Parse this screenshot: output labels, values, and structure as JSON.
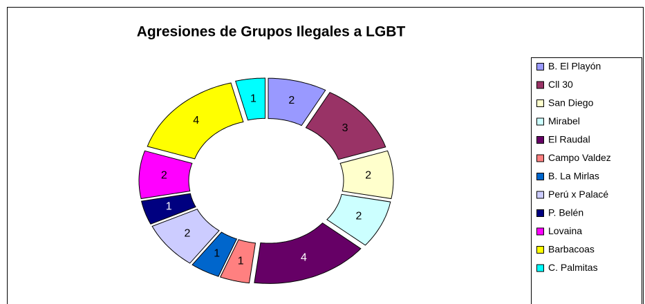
{
  "chart_data": {
    "type": "doughnut",
    "title": "Agresiones de Grupos Ilegales a LGBT",
    "categories": [
      "B. El Playón",
      "Cll 30",
      "San Diego",
      "Mirabel",
      "El Raudal",
      "Campo Valdez",
      "B. La Mirlas",
      "Perú x Palacé",
      "P. Belén",
      "Lovaina",
      "Barbacoas",
      "C. Palmitas"
    ],
    "values": [
      2,
      3,
      2,
      2,
      4,
      1,
      1,
      2,
      1,
      2,
      4,
      1
    ],
    "colors": [
      "#9999ff",
      "#993366",
      "#ffffcc",
      "#ccffff",
      "#660066",
      "#ff8080",
      "#0066cc",
      "#ccccff",
      "#000080",
      "#ff00ff",
      "#ffff00",
      "#00ffff"
    ],
    "legend": "right"
  }
}
